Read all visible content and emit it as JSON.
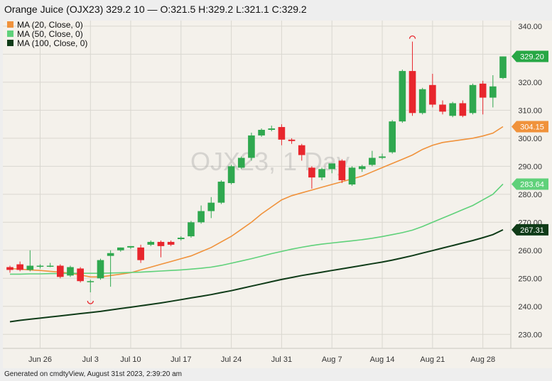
{
  "header": {
    "title": "Orange Juice (OJX23) 329.2 10 — O:321.5 H:329.2 L:321.1 C:329.2"
  },
  "legend": [
    {
      "label": "MA (20, Close, 0)",
      "color": "#f0923b"
    },
    {
      "label": "MA (50, Close, 0)",
      "color": "#5fd17a"
    },
    {
      "label": "MA (100, Close, 0)",
      "color": "#0f3b18"
    }
  ],
  "watermark": "OJX23, 1 Day",
  "footer": "Generated on cmdtyView, August 31st 2023, 2:39:20 am",
  "price_tags": [
    {
      "label": "329.20",
      "value": 329.2,
      "color": "#27a745"
    },
    {
      "label": "304.15",
      "value": 304.15,
      "color": "#f0923b"
    },
    {
      "label": "283.64",
      "value": 283.64,
      "color": "#5fd17a"
    },
    {
      "label": "267.31",
      "value": 267.31,
      "color": "#0f3b18"
    }
  ],
  "colors": {
    "up": "#2fa84f",
    "down": "#e8262d",
    "background": "#f4f1eb",
    "grid": "#d9d7d0"
  },
  "chart_data": {
    "type": "candlestick",
    "title": "Orange Juice (OJX23)",
    "ylim": [
      225,
      342
    ],
    "y_ticks": [
      "230.00",
      "240.00",
      "250.00",
      "260.00",
      "270.00",
      "280.00",
      "290.00",
      "300.00",
      "310.00",
      "320.00",
      "330.00",
      "340.00"
    ],
    "y_tick_values": [
      230,
      240,
      250,
      260,
      270,
      280,
      290,
      300,
      310,
      320,
      330,
      340
    ],
    "x_ticks": [
      "Jun 26",
      "Jul 3",
      "Jul 10",
      "Jul 17",
      "Jul 24",
      "Jul 31",
      "Aug 7",
      "Aug 14",
      "Aug 21",
      "Aug 28"
    ],
    "x_tick_dates": [
      "2023-06-26",
      "2023-07-03",
      "2023-07-10",
      "2023-07-17",
      "2023-07-24",
      "2023-07-31",
      "2023-08-07",
      "2023-08-14",
      "2023-08-21",
      "2023-08-28"
    ],
    "candles": [
      {
        "date": "2023-06-21",
        "open": 254.0,
        "high": 254.5,
        "low": 252.0,
        "close": 253.0
      },
      {
        "date": "2023-06-22",
        "open": 255.0,
        "high": 256.0,
        "low": 252.5,
        "close": 253.0
      },
      {
        "date": "2023-06-23",
        "open": 253.0,
        "high": 260.0,
        "low": 252.5,
        "close": 254.5
      },
      {
        "date": "2023-06-26",
        "open": 254.5,
        "high": 255.0,
        "low": 253.5,
        "close": 254.5
      },
      {
        "date": "2023-06-27",
        "open": 254.5,
        "high": 255.5,
        "low": 254.0,
        "close": 254.5
      },
      {
        "date": "2023-06-28",
        "open": 254.5,
        "high": 255.0,
        "low": 250.0,
        "close": 250.5
      },
      {
        "date": "2023-06-29",
        "open": 251.0,
        "high": 254.5,
        "low": 250.5,
        "close": 254.0
      },
      {
        "date": "2023-06-30",
        "open": 253.5,
        "high": 254.0,
        "low": 248.5,
        "close": 249.0
      },
      {
        "date": "2023-07-03",
        "open": 249.0,
        "high": 249.5,
        "low": 245.0,
        "close": 249.0
      },
      {
        "date": "2023-07-05",
        "open": 250.0,
        "high": 257.0,
        "low": 249.5,
        "close": 256.5
      },
      {
        "date": "2023-07-06",
        "open": 258.0,
        "high": 260.0,
        "low": 247.0,
        "close": 259.0
      },
      {
        "date": "2023-07-07",
        "open": 260.0,
        "high": 261.0,
        "low": 259.5,
        "close": 261.0
      },
      {
        "date": "2023-07-10",
        "open": 261.0,
        "high": 261.5,
        "low": 260.5,
        "close": 261.5
      },
      {
        "date": "2023-07-11",
        "open": 261.0,
        "high": 262.0,
        "low": 255.5,
        "close": 256.5
      },
      {
        "date": "2023-07-12",
        "open": 262.0,
        "high": 263.5,
        "low": 261.5,
        "close": 263.0
      },
      {
        "date": "2023-07-13",
        "open": 263.0,
        "high": 263.5,
        "low": 257.5,
        "close": 261.5
      },
      {
        "date": "2023-07-14",
        "open": 263.0,
        "high": 263.5,
        "low": 261.5,
        "close": 262.0
      },
      {
        "date": "2023-07-17",
        "open": 264.0,
        "high": 265.0,
        "low": 263.5,
        "close": 264.5
      },
      {
        "date": "2023-07-18",
        "open": 265.0,
        "high": 270.5,
        "low": 264.5,
        "close": 270.0
      },
      {
        "date": "2023-07-19",
        "open": 270.0,
        "high": 276.0,
        "low": 269.5,
        "close": 274.0
      },
      {
        "date": "2023-07-20",
        "open": 274.0,
        "high": 279.0,
        "low": 271.5,
        "close": 277.0
      },
      {
        "date": "2023-07-21",
        "open": 277.0,
        "high": 285.0,
        "low": 276.5,
        "close": 284.5
      },
      {
        "date": "2023-07-24",
        "open": 284.0,
        "high": 290.5,
        "low": 283.5,
        "close": 290.0
      },
      {
        "date": "2023-07-25",
        "open": 289.5,
        "high": 293.5,
        "low": 289.0,
        "close": 293.0
      },
      {
        "date": "2023-07-26",
        "open": 293.0,
        "high": 302.0,
        "low": 292.0,
        "close": 301.0
      },
      {
        "date": "2023-07-27",
        "open": 301.0,
        "high": 303.5,
        "low": 300.5,
        "close": 303.0
      },
      {
        "date": "2023-07-28",
        "open": 303.0,
        "high": 304.5,
        "low": 302.5,
        "close": 303.5
      },
      {
        "date": "2023-07-31",
        "open": 304.0,
        "high": 305.0,
        "low": 297.5,
        "close": 299.5
      },
      {
        "date": "2023-08-01",
        "open": 299.5,
        "high": 300.0,
        "low": 298.0,
        "close": 299.0
      },
      {
        "date": "2023-08-02",
        "open": 297.5,
        "high": 298.0,
        "low": 292.0,
        "close": 294.0
      },
      {
        "date": "2023-08-03",
        "open": 289.5,
        "high": 290.0,
        "low": 282.0,
        "close": 286.0
      },
      {
        "date": "2023-08-04",
        "open": 286.0,
        "high": 289.5,
        "low": 285.0,
        "close": 289.0
      },
      {
        "date": "2023-08-07",
        "open": 289.0,
        "high": 291.0,
        "low": 287.5,
        "close": 291.0
      },
      {
        "date": "2023-08-08",
        "open": 292.0,
        "high": 292.5,
        "low": 284.0,
        "close": 285.0
      },
      {
        "date": "2023-08-09",
        "open": 283.5,
        "high": 290.0,
        "low": 283.0,
        "close": 289.5
      },
      {
        "date": "2023-08-10",
        "open": 289.0,
        "high": 290.5,
        "low": 288.0,
        "close": 290.0
      },
      {
        "date": "2023-08-11",
        "open": 290.5,
        "high": 295.5,
        "low": 290.0,
        "close": 293.0
      },
      {
        "date": "2023-08-14",
        "open": 293.0,
        "high": 294.5,
        "low": 292.5,
        "close": 293.5
      },
      {
        "date": "2023-08-15",
        "open": 295.0,
        "high": 306.5,
        "low": 294.5,
        "close": 306.0
      },
      {
        "date": "2023-08-16",
        "open": 306.0,
        "high": 324.5,
        "low": 305.5,
        "close": 324.0
      },
      {
        "date": "2023-08-17",
        "open": 324.0,
        "high": 334.5,
        "low": 308.0,
        "close": 309.0
      },
      {
        "date": "2023-08-18",
        "open": 309.0,
        "high": 318.0,
        "low": 308.5,
        "close": 317.5
      },
      {
        "date": "2023-08-21",
        "open": 319.0,
        "high": 323.0,
        "low": 311.0,
        "close": 312.0
      },
      {
        "date": "2023-08-22",
        "open": 312.0,
        "high": 313.5,
        "low": 308.5,
        "close": 309.5
      },
      {
        "date": "2023-08-23",
        "open": 308.0,
        "high": 313.0,
        "low": 307.5,
        "close": 312.5
      },
      {
        "date": "2023-08-24",
        "open": 312.5,
        "high": 313.5,
        "low": 307.5,
        "close": 308.0
      },
      {
        "date": "2023-08-25",
        "open": 309.0,
        "high": 319.5,
        "low": 308.5,
        "close": 319.0
      },
      {
        "date": "2023-08-28",
        "open": 319.5,
        "high": 320.5,
        "low": 308.5,
        "close": 314.5
      },
      {
        "date": "2023-08-29",
        "open": 314.5,
        "high": 322.5,
        "low": 311.0,
        "close": 318.5
      },
      {
        "date": "2023-08-30",
        "open": 321.5,
        "high": 329.2,
        "low": 321.1,
        "close": 329.2
      }
    ],
    "series": [
      {
        "name": "MA (20, Close, 0)",
        "color": "#f0923b",
        "values": [
          253.5,
          253.3,
          253.0,
          252.8,
          252.5,
          252.2,
          251.8,
          251.2,
          250.5,
          250.5,
          251.0,
          251.5,
          252.0,
          253.0,
          254.0,
          255.0,
          256.0,
          257.0,
          258.0,
          259.5,
          261.0,
          263.0,
          265.0,
          267.5,
          270.0,
          273.0,
          275.5,
          278.0,
          279.5,
          280.5,
          281.5,
          282.5,
          283.5,
          284.5,
          285.5,
          286.5,
          288.0,
          289.5,
          291.0,
          292.5,
          294.0,
          296.0,
          297.5,
          298.5,
          299.0,
          299.5,
          300.0,
          300.8,
          301.8,
          304.15
        ]
      },
      {
        "name": "MA (50, Close, 0)",
        "color": "#5fd17a",
        "values": [
          251.5,
          251.5,
          251.6,
          251.6,
          251.7,
          251.7,
          251.8,
          251.8,
          251.8,
          251.8,
          251.9,
          252.0,
          252.1,
          252.2,
          252.4,
          252.6,
          252.8,
          253.0,
          253.3,
          253.6,
          254.0,
          254.6,
          255.4,
          256.2,
          257.0,
          257.9,
          258.8,
          259.6,
          260.4,
          261.1,
          261.7,
          262.2,
          262.6,
          263.0,
          263.4,
          263.8,
          264.3,
          264.9,
          265.6,
          266.3,
          267.2,
          268.5,
          270.0,
          271.5,
          273.0,
          274.5,
          276.0,
          278.0,
          280.0,
          283.64
        ]
      },
      {
        "name": "MA (100, Close, 0)",
        "color": "#0f3b18",
        "values": [
          234.5,
          235.0,
          235.4,
          235.8,
          236.2,
          236.6,
          237.0,
          237.4,
          237.8,
          238.2,
          238.7,
          239.2,
          239.7,
          240.2,
          240.7,
          241.2,
          241.8,
          242.4,
          243.0,
          243.6,
          244.2,
          244.9,
          245.6,
          246.4,
          247.2,
          248.0,
          248.8,
          249.6,
          250.3,
          251.0,
          251.6,
          252.2,
          252.8,
          253.4,
          254.0,
          254.6,
          255.2,
          255.8,
          256.5,
          257.3,
          258.1,
          259.0,
          259.9,
          260.8,
          261.7,
          262.6,
          263.5,
          264.5,
          265.6,
          267.31
        ]
      }
    ]
  }
}
